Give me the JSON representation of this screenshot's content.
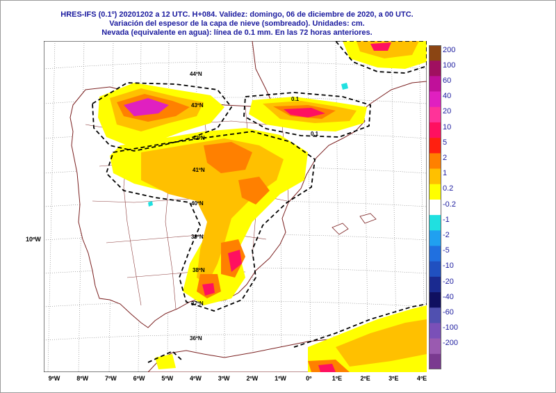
{
  "title": {
    "line1": "HRES-IFS (0.1º) 20201202 a 12 UTC.  H+084. Validez: domingo, 06 de diciembre de 2020,  a  00 UTC.",
    "line2": "Variación del espesor de la capa de nieve (sombreado). Unidades: cm.",
    "line3": "Nevada (equivalente en agua): línea de 0.1 mm. En las 72 horas anteriores."
  },
  "x_axis_labels": [
    "9ºW",
    "8ºW",
    "7ºW",
    "6ºW",
    "5ºW",
    "4ºW",
    "3ºW",
    "2ºW",
    "1ºW",
    "0º",
    "1ºE",
    "2ºE",
    "3ºE",
    "4ºE"
  ],
  "map_labels": {
    "lat_44": "44ºN",
    "lat_43": "43ºN",
    "lat_42": "42ºN",
    "lat_41": "41ºN",
    "lat_40": "40ºN",
    "lat_39": "39ºN",
    "lat_38": "38ºN",
    "lat_37": "37ºN",
    "lat_36": "36ºN",
    "lon_10w": "10ºW",
    "contour_a": "0.1",
    "contour_b": "0.1"
  },
  "legend": {
    "labels": [
      "200",
      "100",
      "60",
      "40",
      "20",
      "10",
      "5",
      "2",
      "1",
      "0.2",
      "-0.2",
      "-1",
      "-2",
      "-5",
      "-10",
      "-20",
      "-40",
      "-60",
      "-100",
      "-200"
    ],
    "colors": [
      "#8b4513",
      "#a01060",
      "#c0109a",
      "#e020c0",
      "#ff3399",
      "#ff1060",
      "#ff2010",
      "#ff8000",
      "#ffc000",
      "#ffff00",
      "#ffffff",
      "#20e0e0",
      "#20a0f0",
      "#2070e0",
      "#2050c0",
      "#1a2a90",
      "#101060",
      "#5050b0",
      "#7a50b8",
      "#9a5ab0",
      "#7a3a90"
    ]
  }
}
